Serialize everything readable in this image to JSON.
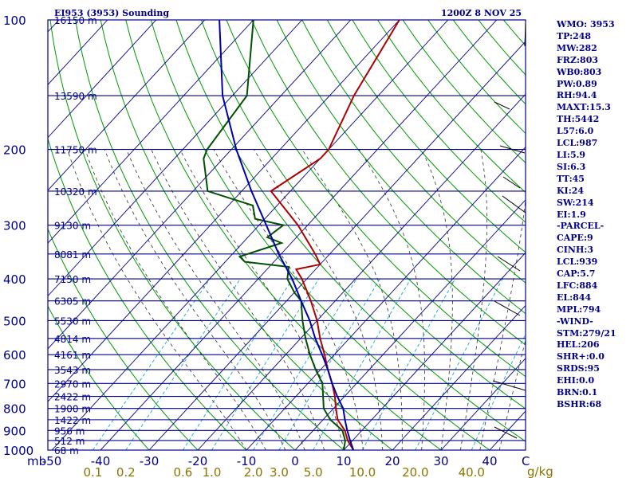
{
  "header": {
    "title": "EI953 (3953) Sounding",
    "valid_time": "1200Z  8 NOV 25"
  },
  "chart_data": {
    "type": "line",
    "diagram": "skew-T log-P",
    "pressure_range_mb": [
      1000,
      100
    ],
    "temperature_range_c": [
      -50,
      50
    ],
    "y_unit": "mb",
    "pressure_ticks": [
      100,
      200,
      300,
      400,
      500,
      600,
      700,
      800,
      900,
      1000
    ],
    "temperature_ticks": [
      -50,
      -40,
      -30,
      -20,
      -10,
      0,
      10,
      20,
      30,
      40
    ],
    "mixing_ratio_unit": "g/kg",
    "mixing_ratio_labels": [
      "0.1",
      "0.2",
      "0.6",
      "1.0",
      "2.0",
      "3.0",
      "5.0",
      "10.0",
      "20.0",
      "40.0"
    ],
    "mixing_ratio_values": [
      0.1,
      0.2,
      0.6,
      1.0,
      2.0,
      3.0,
      5.0,
      10.0,
      20.0,
      40.0
    ],
    "wind_axis_label": "C",
    "height_labels": [
      {
        "p": 100,
        "text": "16150 m"
      },
      {
        "p": 150,
        "text": "13590 m"
      },
      {
        "p": 200,
        "text": "11750 m"
      },
      {
        "p": 250,
        "text": "10320 m"
      },
      {
        "p": 300,
        "text": "9130 m"
      },
      {
        "p": 350,
        "text": "8081 m"
      },
      {
        "p": 400,
        "text": "7150 m"
      },
      {
        "p": 450,
        "text": "6305 m"
      },
      {
        "p": 500,
        "text": "5530 m"
      },
      {
        "p": 550,
        "text": "4814 m"
      },
      {
        "p": 600,
        "text": "4161 m"
      },
      {
        "p": 650,
        "text": "3543 m"
      },
      {
        "p": 700,
        "text": "2970 m"
      },
      {
        "p": 750,
        "text": "2422 m"
      },
      {
        "p": 800,
        "text": "1900 m"
      },
      {
        "p": 850,
        "text": "1422 m"
      },
      {
        "p": 900,
        "text": "956 m"
      },
      {
        "p": 950,
        "text": "512 m"
      },
      {
        "p": 1000,
        "text": "68 m"
      }
    ],
    "series": [
      {
        "name": "temperature",
        "color": "#b00000",
        "points": [
          [
            1000,
            12
          ],
          [
            950,
            9
          ],
          [
            900,
            6.5
          ],
          [
            850,
            3
          ],
          [
            800,
            0.5
          ],
          [
            750,
            -2
          ],
          [
            700,
            -5
          ],
          [
            650,
            -8.5
          ],
          [
            600,
            -12
          ],
          [
            550,
            -16
          ],
          [
            500,
            -20
          ],
          [
            450,
            -25
          ],
          [
            400,
            -31
          ],
          [
            380,
            -34
          ],
          [
            370,
            -30
          ],
          [
            350,
            -33
          ],
          [
            300,
            -42
          ],
          [
            250,
            -54
          ],
          [
            210,
            -50
          ],
          [
            200,
            -50
          ],
          [
            150,
            -55
          ],
          [
            100,
            -60
          ]
        ]
      },
      {
        "name": "dewpoint",
        "color": "#005000",
        "points": [
          [
            1000,
            10
          ],
          [
            950,
            8.5
          ],
          [
            900,
            6
          ],
          [
            850,
            1.5
          ],
          [
            800,
            -2
          ],
          [
            700,
            -7
          ],
          [
            650,
            -11
          ],
          [
            600,
            -15
          ],
          [
            550,
            -19
          ],
          [
            500,
            -23
          ],
          [
            450,
            -27
          ],
          [
            430,
            -30
          ],
          [
            400,
            -34
          ],
          [
            375,
            -36
          ],
          [
            365,
            -46
          ],
          [
            355,
            -48
          ],
          [
            330,
            -42
          ],
          [
            320,
            -46
          ],
          [
            300,
            -45
          ],
          [
            290,
            -52
          ],
          [
            270,
            -55
          ],
          [
            250,
            -67
          ],
          [
            210,
            -74
          ],
          [
            200,
            -75
          ],
          [
            150,
            -77
          ],
          [
            100,
            -90
          ]
        ]
      },
      {
        "name": "parcel",
        "color": "#0000aa",
        "points": [
          [
            1000,
            12
          ],
          [
            950,
            9.5
          ],
          [
            900,
            7
          ],
          [
            850,
            4.5
          ],
          [
            800,
            2
          ],
          [
            750,
            -1.5
          ],
          [
            700,
            -5
          ],
          [
            650,
            -8.5
          ],
          [
            600,
            -12.5
          ],
          [
            550,
            -17
          ],
          [
            500,
            -21.5
          ],
          [
            450,
            -27
          ],
          [
            400,
            -33
          ],
          [
            350,
            -40.5
          ],
          [
            300,
            -48.5
          ],
          [
            250,
            -58
          ],
          [
            200,
            -69
          ],
          [
            150,
            -82
          ],
          [
            100,
            -97
          ]
        ]
      }
    ]
  },
  "indices": [
    "WMO: 3953",
    "TP:248",
    "MW:282",
    "FRZ:803",
    "WB0:803",
    "PW:0.89",
    "RH:94.4",
    "MAXT:15.3",
    "TH:5442",
    "L57:6.0",
    "LCL:987",
    "LI:5.9",
    "SI:6.3",
    "TT:45",
    "KI:24",
    "SW:214",
    "EI:1.9",
    "-PARCEL-",
    "CAPE:9",
    "CINH:3",
    "LCL:939",
    "CAP:5.7",
    "LFC:884",
    "EL:844",
    "MPL:794",
    "-WIND-",
    "STM:279/21",
    "HEL:206",
    "SHR+:0.0",
    "SRDS:95",
    "EHI:0.0",
    "BRN:0.1",
    "BSHR:68"
  ],
  "colors": {
    "isobar": "#00008b",
    "isotherm": "#00008b",
    "dry_adiabat": "#009900",
    "mixing": "#2ab0d0",
    "moist": "#303030",
    "tick_label": "#00008b",
    "mix_label": "#8b7500",
    "wind": "#000000"
  }
}
